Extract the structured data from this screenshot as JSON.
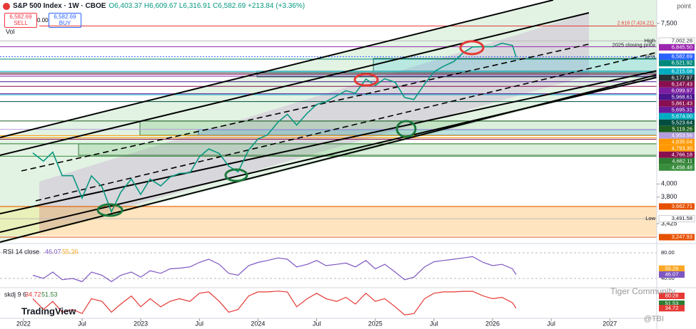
{
  "header": {
    "symbol": "S&P 500 Index · 1W · CBOE",
    "ohlc": "O6,403.37 H6,609.67 L6,316.91 C6,582.69 +213.84 (+3.36%)",
    "sell_price": "6,582.69",
    "sell_label": "SELL",
    "spread": "0.00",
    "buy_price": "6,582.69",
    "buy_label": "BUY",
    "volume_label": "Vol"
  },
  "price_chart": {
    "unit": "point",
    "log_scale": true,
    "ylim": [
      3168,
      8220
    ],
    "xlim": [
      2021.8,
      2027.4
    ],
    "yticks": [
      {
        "value": 7500,
        "label": "7,500"
      },
      {
        "value": 4000,
        "label": "4,000"
      },
      {
        "value": 3800,
        "label": "3,800"
      },
      {
        "value": 3425,
        "label": "3,425"
      }
    ],
    "xticks": [
      {
        "value": 2022,
        "label": "2022"
      },
      {
        "value": 2022.5,
        "label": "Jul"
      },
      {
        "value": 2023,
        "label": "2023"
      },
      {
        "value": 2023.5,
        "label": "Jul"
      },
      {
        "value": 2024,
        "label": "2024"
      },
      {
        "value": 2024.5,
        "label": "Jul"
      },
      {
        "value": 2025,
        "label": "2025"
      },
      {
        "value": 2025.5,
        "label": "Jul"
      },
      {
        "value": 2026,
        "label": "2026"
      },
      {
        "value": 2026.5,
        "label": "Jul"
      },
      {
        "value": 2027,
        "label": "2027"
      }
    ],
    "x": [
      2022.08,
      2022.17,
      2022.25,
      2022.33,
      2022.42,
      2022.5,
      2022.58,
      2022.67,
      2022.75,
      2022.83,
      2022.92,
      2023.0,
      2023.08,
      2023.17,
      2023.25,
      2023.33,
      2023.42,
      2023.5,
      2023.58,
      2023.67,
      2023.75,
      2023.83,
      2023.92,
      2024.0,
      2024.08,
      2024.17,
      2024.25,
      2024.33,
      2024.42,
      2024.5,
      2024.58,
      2024.67,
      2024.75,
      2024.83,
      2024.92,
      2025.0,
      2025.08,
      2025.17,
      2025.25,
      2025.33,
      2025.42,
      2025.5,
      2025.58,
      2025.67,
      2025.75,
      2025.83,
      2025.92,
      2026.0,
      2026.08,
      2026.17,
      2026.2
    ],
    "closes": [
      4516,
      4374,
      4530,
      4132,
      4132,
      3785,
      4130,
      3955,
      3586,
      3872,
      4080,
      3840,
      4077,
      3970,
      4109,
      4169,
      4180,
      4450,
      4589,
      4508,
      4288,
      4194,
      4568,
      4770,
      4846,
      5096,
      5254,
      5036,
      5278,
      5460,
      5522,
      5648,
      5762,
      5705,
      6032,
      5882,
      6041,
      5955,
      5612,
      5569,
      5912,
      6205,
      6339,
      6460,
      6688,
      6840,
      6849,
      6845,
      6940,
      6880,
      6582.69
    ],
    "color": "#089981",
    "levels": [
      {
        "value": 7424.21,
        "label": "2.618 (7,424.21)",
        "color": "#e53935"
      },
      {
        "value": 7002.28,
        "label": "7,002.28",
        "tag": "High",
        "color": "#ffffff"
      },
      {
        "value": 6845.5,
        "label": "6,845.50",
        "tag": "2025 closing price",
        "color": "#9c27b0"
      },
      {
        "value": 6582.69,
        "label": "6,582.69",
        "tag": "SPX",
        "color": "#2962ff"
      },
      {
        "value": 6521.92,
        "label": "6,521.92",
        "color": "#00897b"
      },
      {
        "value": 6215.08,
        "label": "6,215.08",
        "color": "#00acc1"
      },
      {
        "value": 6177.97,
        "label": "6,177.97",
        "color": "#263238"
      },
      {
        "value": 6147.43,
        "label": "6,147.43",
        "color": "#880e4f"
      },
      {
        "value": 6099.97,
        "label": "6,099.97",
        "color": "#7b1fa2"
      },
      {
        "value": 5968.61,
        "label": "5,968.61",
        "color": "#4a148c"
      },
      {
        "value": 5861.43,
        "label": "5,861.43",
        "color": "#880e4f"
      },
      {
        "value": 5695.31,
        "label": "5,695.31",
        "color": "#6a1b9a"
      },
      {
        "value": 5674,
        "label": "5,674.00",
        "color": "#00acc1"
      },
      {
        "value": 5523.64,
        "label": "5,523.64",
        "color": "#004d40"
      },
      {
        "value": 5119.26,
        "label": "5,119.26",
        "color": "#1b5e20"
      },
      {
        "value": 4953.56,
        "label": "4,953.56",
        "color": "#b39ddb"
      },
      {
        "value": 4835.04,
        "label": "4,835.04",
        "color": "#ff9800"
      },
      {
        "value": 4793.3,
        "label": "4,793.30",
        "color": "#ff9800"
      },
      {
        "value": 4766.18,
        "label": "4,766.18",
        "color": "#880e4f"
      },
      {
        "value": 4682.11,
        "label": "4,682.11",
        "color": "#2e7d32"
      },
      {
        "value": 4458.48,
        "label": "4,458.48",
        "color": "#388e3c"
      },
      {
        "value": 3662.71,
        "label": "3,662.71",
        "color": "#e65100"
      },
      {
        "value": 3491.58,
        "label": "3,491.58",
        "tag": "Low",
        "color": "#ffffff"
      },
      {
        "value": 3247.93,
        "label": "3,247.93",
        "color": "#e65100"
      }
    ]
  },
  "rsi": {
    "title": "RSI 14 close",
    "value_label": "46.07",
    "ma_label": "55.26",
    "ylim": [
      30,
      90
    ],
    "yticks": [
      {
        "value": 80,
        "label": "80.00"
      },
      {
        "value": 40,
        "label": "40.00"
      }
    ],
    "levels": [
      {
        "value": 55.26,
        "label": "55.26",
        "color": "#f9a825"
      },
      {
        "value": 46.07,
        "label": "46.07",
        "color": "#7e57c2"
      }
    ],
    "values": [
      45,
      40,
      50,
      38,
      40,
      35,
      50,
      45,
      35,
      45,
      50,
      42,
      52,
      48,
      55,
      56,
      58,
      65,
      70,
      62,
      48,
      45,
      60,
      65,
      68,
      72,
      70,
      58,
      62,
      68,
      60,
      62,
      64,
      58,
      68,
      55,
      62,
      50,
      38,
      42,
      58,
      66,
      68,
      70,
      72,
      74,
      65,
      60,
      62,
      55,
      46.07
    ]
  },
  "skdj": {
    "title": "skdj 9 6",
    "k_label": "34.72",
    "d_label": "51.53",
    "ylim": [
      0,
      100
    ],
    "levels": [
      {
        "value": 80.28,
        "label": "80.28",
        "color": "#e53935"
      },
      {
        "value": 51.53,
        "label": "51.53",
        "color": "#2e7d32"
      },
      {
        "value": 34.72,
        "label": "34.72",
        "color": "#e53935"
      }
    ],
    "values": [
      70,
      30,
      60,
      20,
      30,
      15,
      70,
      60,
      20,
      50,
      80,
      40,
      70,
      40,
      60,
      70,
      60,
      90,
      95,
      60,
      20,
      30,
      80,
      95,
      95,
      98,
      95,
      40,
      70,
      90,
      70,
      60,
      75,
      50,
      90,
      60,
      70,
      40,
      10,
      15,
      70,
      90,
      95,
      95,
      97,
      97,
      80,
      70,
      75,
      55,
      34.72
    ]
  },
  "footer": {
    "logo": "TradingView",
    "watermark": "Tiger Community",
    "handle": "@TBI"
  }
}
